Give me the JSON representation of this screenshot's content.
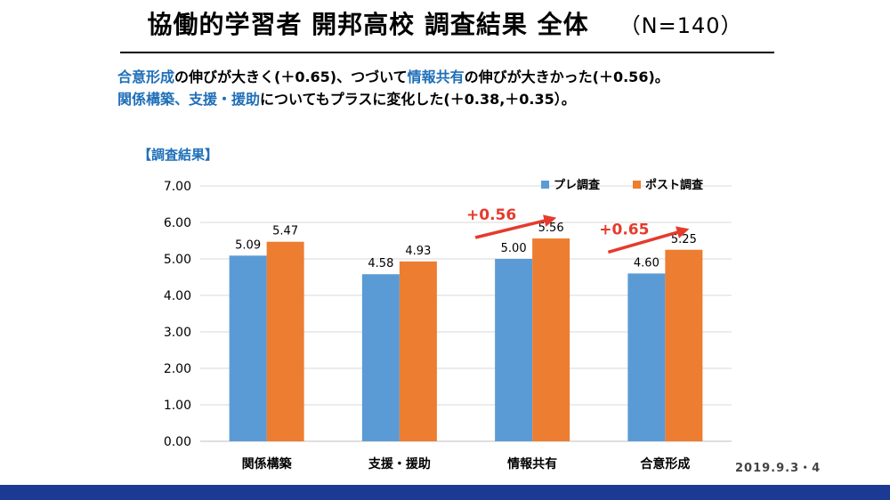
{
  "slide": {
    "title": "協働的学習者 開邦高校 調査結果 全体",
    "sample": "（N=140）",
    "summary_line1": [
      {
        "text": "合意形成",
        "highlight": true
      },
      {
        "text": "の伸びが大きく(＋0.65)、つづいて",
        "highlight": false
      },
      {
        "text": "情報共有",
        "highlight": true
      },
      {
        "text": "の伸びが大きかった(＋0.56)。",
        "highlight": false
      }
    ],
    "summary_line2": [
      {
        "text": "関係構築、支援・援助",
        "highlight": true
      },
      {
        "text": "についてもプラスに変化した(＋0.38,＋0.35）。",
        "highlight": false
      }
    ],
    "chart_label": "【調査結果】",
    "date": "2019.9.3・4"
  },
  "colors": {
    "pre": "#5b9bd5",
    "post": "#ed7d31",
    "arrow": "#e53b2c",
    "highlight": "#1f6fb8",
    "footer": "#1c3a93"
  },
  "chart_data": {
    "type": "bar",
    "title": "",
    "categories": [
      "関係構築",
      "支援・援助",
      "情報共有",
      "合意形成"
    ],
    "series": [
      {
        "name": "プレ調査",
        "values": [
          5.09,
          4.58,
          5.0,
          4.6
        ]
      },
      {
        "name": "ポスト調査",
        "values": [
          5.47,
          4.93,
          5.56,
          5.25
        ]
      }
    ],
    "ylim": [
      0,
      7
    ],
    "yticks": [
      0,
      1,
      2,
      3,
      4,
      5,
      6,
      7
    ],
    "ytick_labels": [
      "0.00",
      "1.00",
      "2.00",
      "3.00",
      "4.00",
      "5.00",
      "6.00",
      "7.00"
    ],
    "value_labels": {
      "pre": [
        "5.09",
        "4.58",
        "5.00",
        "4.60"
      ],
      "post": [
        "5.47",
        "4.93",
        "5.56",
        "5.25"
      ]
    },
    "grid": true,
    "legend": "top-right",
    "annotations": [
      {
        "text": "+0.56",
        "category_index": 2
      },
      {
        "text": "+0.65",
        "category_index": 3
      }
    ]
  }
}
